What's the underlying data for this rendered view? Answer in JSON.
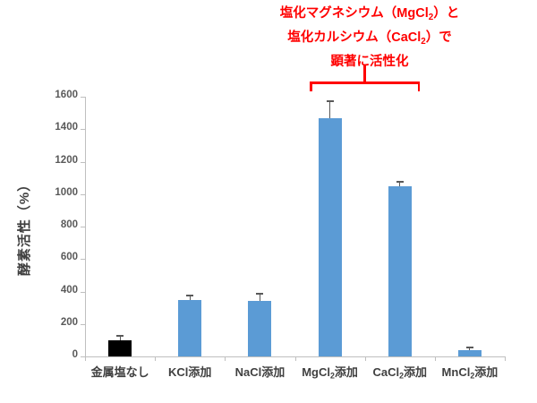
{
  "annotation": {
    "color": "#FF0000",
    "lines": [
      {
        "pre": "塩化マグネシウム（MgCl",
        "sub": "2",
        "post": "）と"
      },
      {
        "pre": "塩化カルシウム（CaCl",
        "sub": "2",
        "post": "）で"
      },
      {
        "pre": "顕著に活性化",
        "sub": "",
        "post": ""
      }
    ]
  },
  "chart_data": {
    "type": "bar",
    "title": "",
    "xlabel": "",
    "ylabel": "酵素活性（%）",
    "ylim": [
      0,
      1600
    ],
    "yticks": [
      0,
      200,
      400,
      600,
      800,
      1000,
      1200,
      1400,
      1600
    ],
    "grid": false,
    "legend": "none",
    "categories": [
      "金属塩なし",
      "KCl添加",
      "NaCl添加",
      "MgCl2添加",
      "CaCl2添加",
      "MnCl2添加"
    ],
    "categories_rich": [
      {
        "pre": "金属塩なし",
        "sub": "",
        "post": ""
      },
      {
        "pre": "KCl添加",
        "sub": "",
        "post": ""
      },
      {
        "pre": "NaCl添加",
        "sub": "",
        "post": ""
      },
      {
        "pre": "MgCl",
        "sub": "2",
        "post": "添加"
      },
      {
        "pre": "CaCl",
        "sub": "2",
        "post": "添加"
      },
      {
        "pre": "MnCl",
        "sub": "2",
        "post": "添加"
      }
    ],
    "slugs": [
      "no-metal-salt",
      "kcl-added",
      "nacl-added",
      "mgcl2-added",
      "cacl2-added",
      "mncl2-added"
    ],
    "values": [
      100,
      345,
      340,
      1465,
      1050,
      40
    ],
    "errors_plus": [
      25,
      30,
      45,
      110,
      25,
      15
    ],
    "bar_colors": [
      "#000000",
      "#5B9BD5",
      "#5B9BD5",
      "#5B9BD5",
      "#5B9BD5",
      "#5B9BD5"
    ],
    "highlighted_categories": [
      "MgCl2添加",
      "CaCl2添加"
    ]
  },
  "colors": {
    "bar_blue": "#5B9BD5",
    "bar_black": "#000000",
    "axis_line": "#BFBFBF",
    "tick_label": "#595959",
    "error_bar": "#595959",
    "annotation_red": "#FF0000"
  }
}
